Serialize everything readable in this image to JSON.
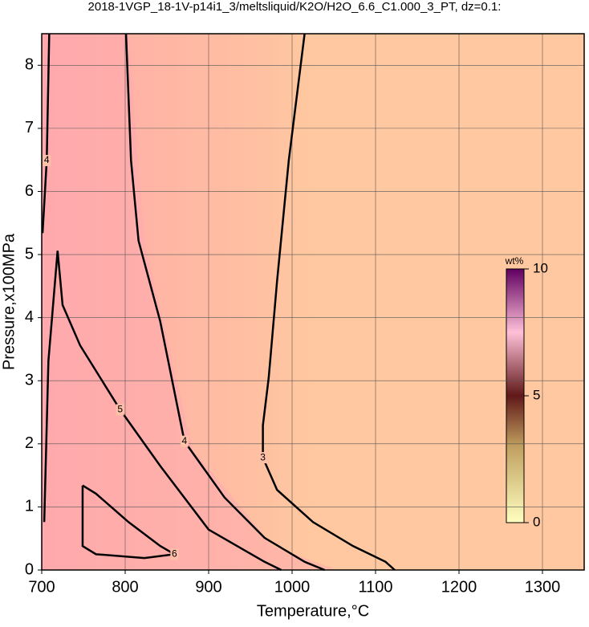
{
  "chart_data": {
    "type": "contour",
    "title": "2018-1VGP_18-1V-p14i1_3/meltsliquid/K2O/H2O_6.6_C1.000_3_PT, dz=0.1:",
    "x_label": "Temperature,°C",
    "y_label": "Pressure,x100MPa",
    "xlim": [
      700,
      1350
    ],
    "ylim": [
      0,
      8.5
    ],
    "xticks": [
      700,
      800,
      900,
      1000,
      1100,
      1200,
      1300
    ],
    "yticks": [
      0,
      1,
      2,
      3,
      4,
      5,
      6,
      7,
      8
    ],
    "grid": true,
    "line_color": "#000000",
    "contours": [
      {
        "level": 3,
        "x": [
          1015,
          996,
          982,
          972,
          965,
          965,
          982,
          1025,
          1073,
          1112,
          1123
        ],
        "y": [
          8.5,
          6.49,
          4.58,
          3.05,
          2.29,
          1.78,
          1.27,
          0.76,
          0.38,
          0.13,
          0
        ]
      },
      {
        "level": 4,
        "x": [
          801,
          807,
          816,
          842,
          871,
          919,
          967,
          1015,
          1039
        ],
        "y": [
          8.5,
          6.49,
          5.22,
          3.94,
          2.04,
          1.15,
          0.51,
          0.13,
          0
        ]
      },
      {
        "level": 4,
        "x": [
          709,
          706,
          701
        ],
        "y": [
          8.5,
          6.49,
          5.34
        ]
      },
      {
        "level": 5,
        "x": [
          703,
          708,
          719,
          725,
          746,
          794,
          842,
          900,
          967,
          987
        ],
        "y": [
          0.76,
          3.31,
          5.06,
          4.2,
          3.56,
          2.54,
          1.65,
          0.64,
          0.13,
          0
        ]
      },
      {
        "level": 6,
        "x": [
          749,
          765,
          804,
          842,
          859,
          823,
          765,
          749,
          749
        ],
        "y": [
          1.34,
          1.21,
          0.76,
          0.38,
          0.25,
          0.19,
          0.25,
          0.38,
          1.34
        ]
      }
    ],
    "colorbar": {
      "label": "wt%",
      "lim": [
        0,
        10
      ],
      "ticks": [
        0,
        5,
        10
      ]
    }
  }
}
